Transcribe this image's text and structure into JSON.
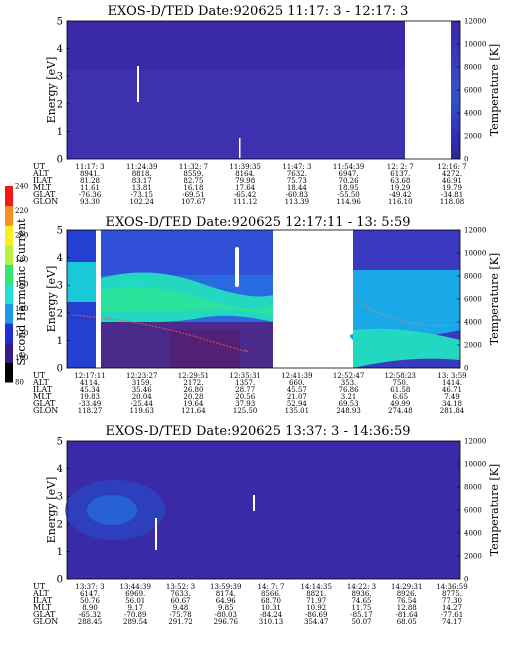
{
  "chart_data": [
    {
      "type": "heatmap",
      "title": "EXOS-D/TED   Date:920625  11:17: 3 - 12:17: 3",
      "ylabel": "Energy [eV]",
      "y2label": "Temperature [K]",
      "ylim": [
        0,
        5
      ],
      "y2lim": [
        0,
        12000
      ],
      "yticks": [
        "0",
        "1",
        "2",
        "3",
        "4",
        "5"
      ],
      "y2ticks": [
        "0",
        "2000",
        "4000",
        "6000",
        "8000",
        "10000",
        "12000"
      ],
      "rows": [
        {
          "label": "UT",
          "values": [
            "11:17: 3",
            "11:24:39",
            "11:32: 7",
            "11:39:35",
            "11:47: 3",
            "11:54:39",
            "12: 2: 7",
            "12:16: 7"
          ]
        },
        {
          "label": "ALT",
          "values": [
            "8941.",
            "8818.",
            "8559.",
            "8164.",
            "7632.",
            "6947.",
            "6137.",
            "4272."
          ]
        },
        {
          "label": "ILAT",
          "values": [
            "81.28",
            "83.17",
            "82.75",
            "79.98",
            "75.73",
            "70.26",
            "63.68",
            "46.91"
          ]
        },
        {
          "label": "MLT",
          "values": [
            "11.61",
            "13.81",
            "16.18",
            "17.64",
            "18.44",
            "18.95",
            "19.29",
            "19.79"
          ]
        },
        {
          "label": "GLAT",
          "values": [
            "-76.36",
            "-73.15",
            "-69.51",
            "-65.42",
            "-60.83",
            "-55.50",
            "-49.42",
            "-34.81"
          ]
        },
        {
          "label": "GLON",
          "values": [
            "93.30",
            "102.24",
            "107.67",
            "111.12",
            "113.39",
            "114.96",
            "116.10",
            "118.08"
          ]
        }
      ]
    },
    {
      "type": "heatmap",
      "title": "EXOS-D/TED   Date:920625  12:17:11 - 13: 5:59",
      "ylabel": "Energy [eV]",
      "y2label": "Temperature [K]",
      "ylim": [
        0,
        5
      ],
      "y2lim": [
        0,
        12000
      ],
      "yticks": [
        "0",
        "1",
        "2",
        "3",
        "4",
        "5"
      ],
      "y2ticks": [
        "0",
        "2000",
        "4000",
        "6000",
        "8000",
        "10000",
        "12000"
      ],
      "colorbar": {
        "label": "Second Harmonic Current",
        "ticks": [
          "80",
          "100",
          "120",
          "140",
          "160",
          "180",
          "200",
          "220",
          "240"
        ]
      },
      "rows": [
        {
          "label": "UT",
          "values": [
            "12:17:11",
            "12:23:27",
            "12:29:51",
            "12:35:31",
            "12:41:39",
            "12:52:47",
            "12:58:23",
            "13: 3:59"
          ]
        },
        {
          "label": "ALT",
          "values": [
            "4114.",
            "3159.",
            "2172.",
            "1357.",
            "660.",
            "353.",
            "750.",
            "1414."
          ]
        },
        {
          "label": "ILAT",
          "values": [
            "45.34",
            "35.46",
            "26.80",
            "28.77",
            "45.57",
            "76.86",
            "61.58",
            "46.71"
          ]
        },
        {
          "label": "MLT",
          "values": [
            "19.83",
            "20.04",
            "20.28",
            "20.56",
            "21.07",
            "3.21",
            "6.65",
            "7.49"
          ]
        },
        {
          "label": "GLAT",
          "values": [
            "-33.49",
            "-25.44",
            "19.64",
            "37.93",
            "52.94",
            "69.53",
            "49.99",
            "34.18"
          ]
        },
        {
          "label": "GLON",
          "values": [
            "118.27",
            "119.63",
            "121.64",
            "125.50",
            "135.01",
            "248.93",
            "274.48",
            "281.84"
          ]
        }
      ]
    },
    {
      "type": "heatmap",
      "title": "EXOS-D/TED   Date:920625  13:37: 3 - 14:36:59",
      "ylabel": "Energy [eV]",
      "y2label": "Temperature [K]",
      "ylim": [
        0,
        5
      ],
      "y2lim": [
        0,
        12000
      ],
      "yticks": [
        "0",
        "1",
        "2",
        "3",
        "4",
        "5"
      ],
      "y2ticks": [
        "0",
        "2000",
        "4000",
        "6000",
        "8000",
        "10000",
        "12000"
      ],
      "rows": [
        {
          "label": "UT",
          "values": [
            "13:37: 3",
            "13:44:39",
            "13:52: 3",
            "13:59:39",
            "14: 7: 7",
            "14:14:35",
            "14:22: 3",
            "14:29:31",
            "14:36:59"
          ]
        },
        {
          "label": "ALT",
          "values": [
            "6147.",
            "6969.",
            "7633.",
            "8174.",
            "8566.",
            "8821.",
            "8936.",
            "8926.",
            "8775."
          ]
        },
        {
          "label": "ILAT",
          "values": [
            "50.76",
            "56.01",
            "60.67",
            "64.96",
            "68.70",
            "71.97",
            "74.65",
            "76.54",
            "77.30"
          ]
        },
        {
          "label": "MLT",
          "values": [
            "8.90",
            "9.17",
            "9.48",
            "9.85",
            "10.31",
            "10.92",
            "11.75",
            "12.88",
            "14.27"
          ]
        },
        {
          "label": "GLAT",
          "values": [
            "-65.32",
            "-70.89",
            "-75.78",
            "-80.03",
            "-84.24",
            "-86.69",
            "-85.17",
            "-81.64",
            "-77.61"
          ]
        },
        {
          "label": "GLON",
          "values": [
            "288.45",
            "289.54",
            "291.72",
            "296.76",
            "310.13",
            "354.47",
            "50.07",
            "68.05",
            "74.17"
          ]
        }
      ]
    }
  ],
  "colors": {
    "background": "#3a2a9a",
    "band_high": "#27d8c0",
    "band_mid": "#1aa8e8",
    "band_low": "#2545d8",
    "base": "#3f2fa8",
    "colorbar": [
      "#000000",
      "#3a1a8a",
      "#2030d8",
      "#1a9ae8",
      "#22e0d8",
      "#30e870",
      "#b8f040",
      "#f8f020",
      "#f89020",
      "#f01818"
    ]
  }
}
